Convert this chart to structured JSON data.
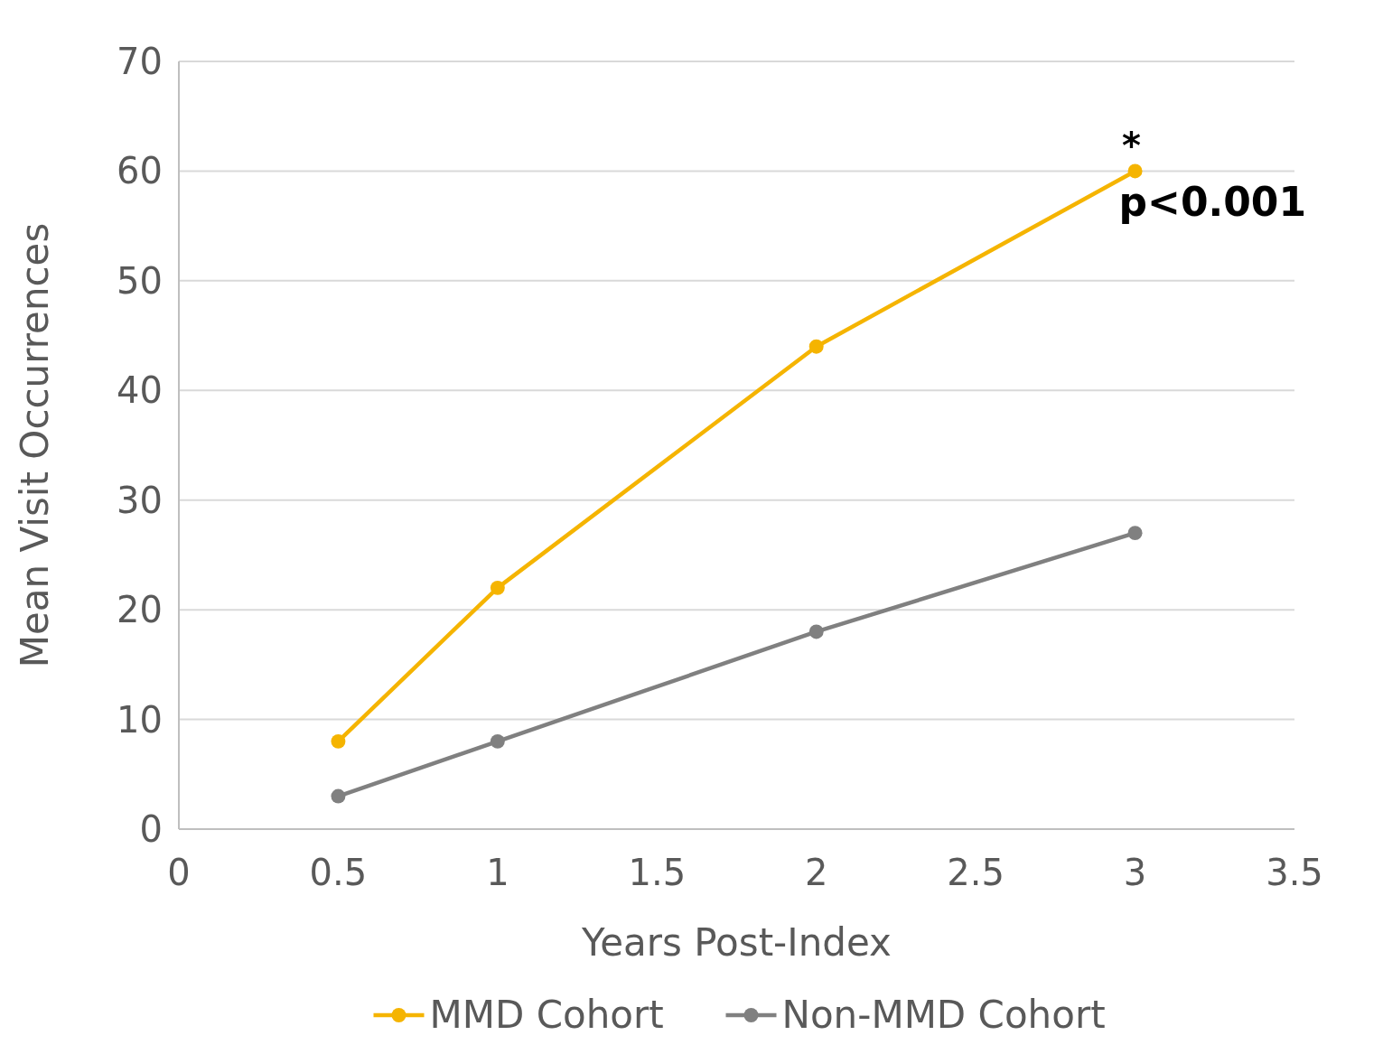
{
  "chart_data": {
    "type": "line",
    "xlabel": "Years Post-Index",
    "ylabel": "Mean Visit Occurrences",
    "x": [
      0.5,
      1,
      2,
      3
    ],
    "series": [
      {
        "name": "MMD Cohort",
        "color": "#f5b400",
        "values": [
          8,
          22,
          44,
          60
        ]
      },
      {
        "name": "Non-MMD Cohort",
        "color": "#808080",
        "values": [
          3,
          8,
          18,
          27
        ]
      }
    ],
    "xlim": [
      0,
      3.5
    ],
    "xticks": [
      0,
      0.5,
      1,
      1.5,
      2,
      2.5,
      3,
      3.5
    ],
    "ylim": [
      0,
      70
    ],
    "yticks": [
      0,
      10,
      20,
      30,
      40,
      50,
      60,
      70
    ],
    "grid": "y",
    "legend": "bottom",
    "marker": "circle",
    "line_style": "solid",
    "annotations": [
      {
        "text": "*",
        "x": 3,
        "y": 60
      },
      {
        "text": "p<0.001",
        "x": 3,
        "y": 60
      }
    ]
  }
}
